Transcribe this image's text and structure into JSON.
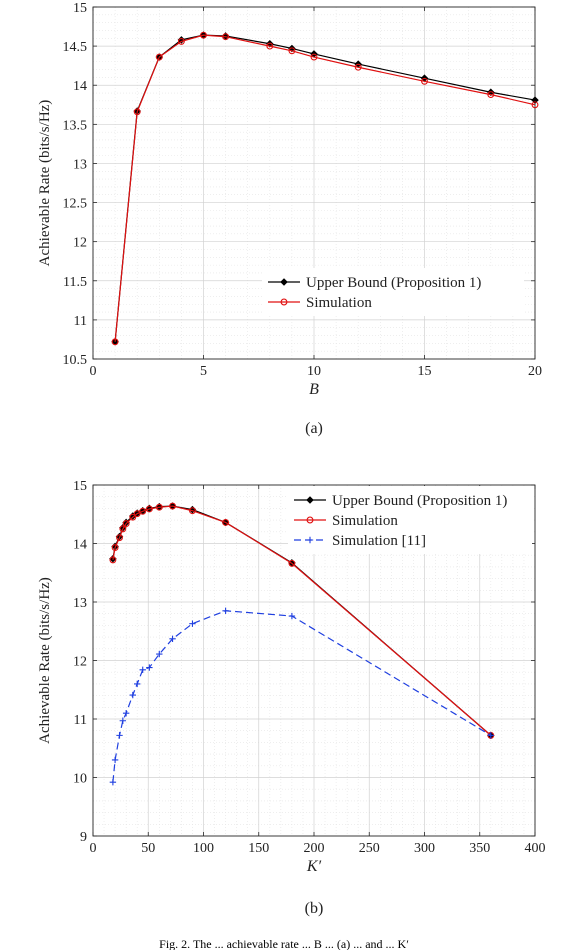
{
  "figure": {
    "trailing_text": "Fig. 2.  The ... achievable rate ... B ... (a) ... and ... K′"
  },
  "chart_data": [
    {
      "type": "line",
      "panel_label": "(a)",
      "xlabel": "B",
      "ylabel": "Achievable Rate (bits/s/Hz)",
      "xlim": [
        0,
        20
      ],
      "ylim": [
        10.5,
        15
      ],
      "xticks": [
        0,
        5,
        10,
        15,
        20
      ],
      "yticks": [
        10.5,
        11,
        11.5,
        12,
        12.5,
        13,
        13.5,
        14,
        14.5,
        15
      ],
      "grid": true,
      "legend_position": "lower-right",
      "series": [
        {
          "name": "Upper Bound (Proposition 1)",
          "color": "#000000",
          "marker": "diamond",
          "line": "solid",
          "x": [
            1,
            2,
            3,
            4,
            5,
            6,
            8,
            9,
            10,
            12,
            15,
            18,
            20
          ],
          "y": [
            10.72,
            13.67,
            14.36,
            14.58,
            14.64,
            14.63,
            14.53,
            14.47,
            14.4,
            14.27,
            14.09,
            13.91,
            13.81
          ]
        },
        {
          "name": "Simulation",
          "color": "#e01010",
          "marker": "circle",
          "line": "solid",
          "x": [
            1,
            2,
            3,
            4,
            5,
            6,
            8,
            9,
            10,
            12,
            15,
            18,
            20
          ],
          "y": [
            10.72,
            13.66,
            14.36,
            14.56,
            14.64,
            14.62,
            14.5,
            14.44,
            14.36,
            14.23,
            14.05,
            13.88,
            13.75
          ]
        }
      ]
    },
    {
      "type": "line",
      "panel_label": "(b)",
      "xlabel": "K′",
      "ylabel": "Achievable Rate (bits/s/Hz)",
      "xlim": [
        0,
        400
      ],
      "ylim": [
        9,
        15
      ],
      "xticks": [
        0,
        50,
        100,
        150,
        200,
        250,
        300,
        350,
        400
      ],
      "yticks": [
        9,
        10,
        11,
        12,
        13,
        14,
        15
      ],
      "grid": true,
      "legend_position": "top-right",
      "series": [
        {
          "name": "Upper Bound (Proposition 1)",
          "color": "#000000",
          "marker": "diamond",
          "line": "solid",
          "x": [
            18,
            20,
            24,
            27,
            30,
            36,
            40,
            45,
            51,
            60,
            72,
            90,
            120,
            180,
            360
          ],
          "y": [
            13.74,
            13.95,
            14.12,
            14.27,
            14.36,
            14.47,
            14.52,
            14.56,
            14.6,
            14.63,
            14.64,
            14.58,
            14.36,
            13.67,
            10.72
          ]
        },
        {
          "name": "Simulation",
          "color": "#e01010",
          "marker": "circle",
          "line": "solid",
          "x": [
            18,
            20,
            24,
            27,
            30,
            36,
            40,
            45,
            51,
            60,
            72,
            90,
            120,
            180,
            360
          ],
          "y": [
            13.72,
            13.93,
            14.1,
            14.25,
            14.34,
            14.45,
            14.51,
            14.55,
            14.59,
            14.62,
            14.64,
            14.56,
            14.36,
            13.66,
            10.72
          ]
        },
        {
          "name": "Simulation [11]",
          "color": "#1f3fe0",
          "marker": "plus",
          "line": "dashed",
          "x": [
            18,
            20,
            24,
            27,
            30,
            36,
            40,
            45,
            51,
            60,
            72,
            90,
            120,
            180,
            360
          ],
          "y": [
            9.92,
            10.3,
            10.72,
            10.97,
            11.1,
            11.41,
            11.6,
            11.84,
            11.88,
            12.11,
            12.37,
            12.63,
            12.85,
            12.76,
            10.72
          ]
        }
      ]
    }
  ]
}
